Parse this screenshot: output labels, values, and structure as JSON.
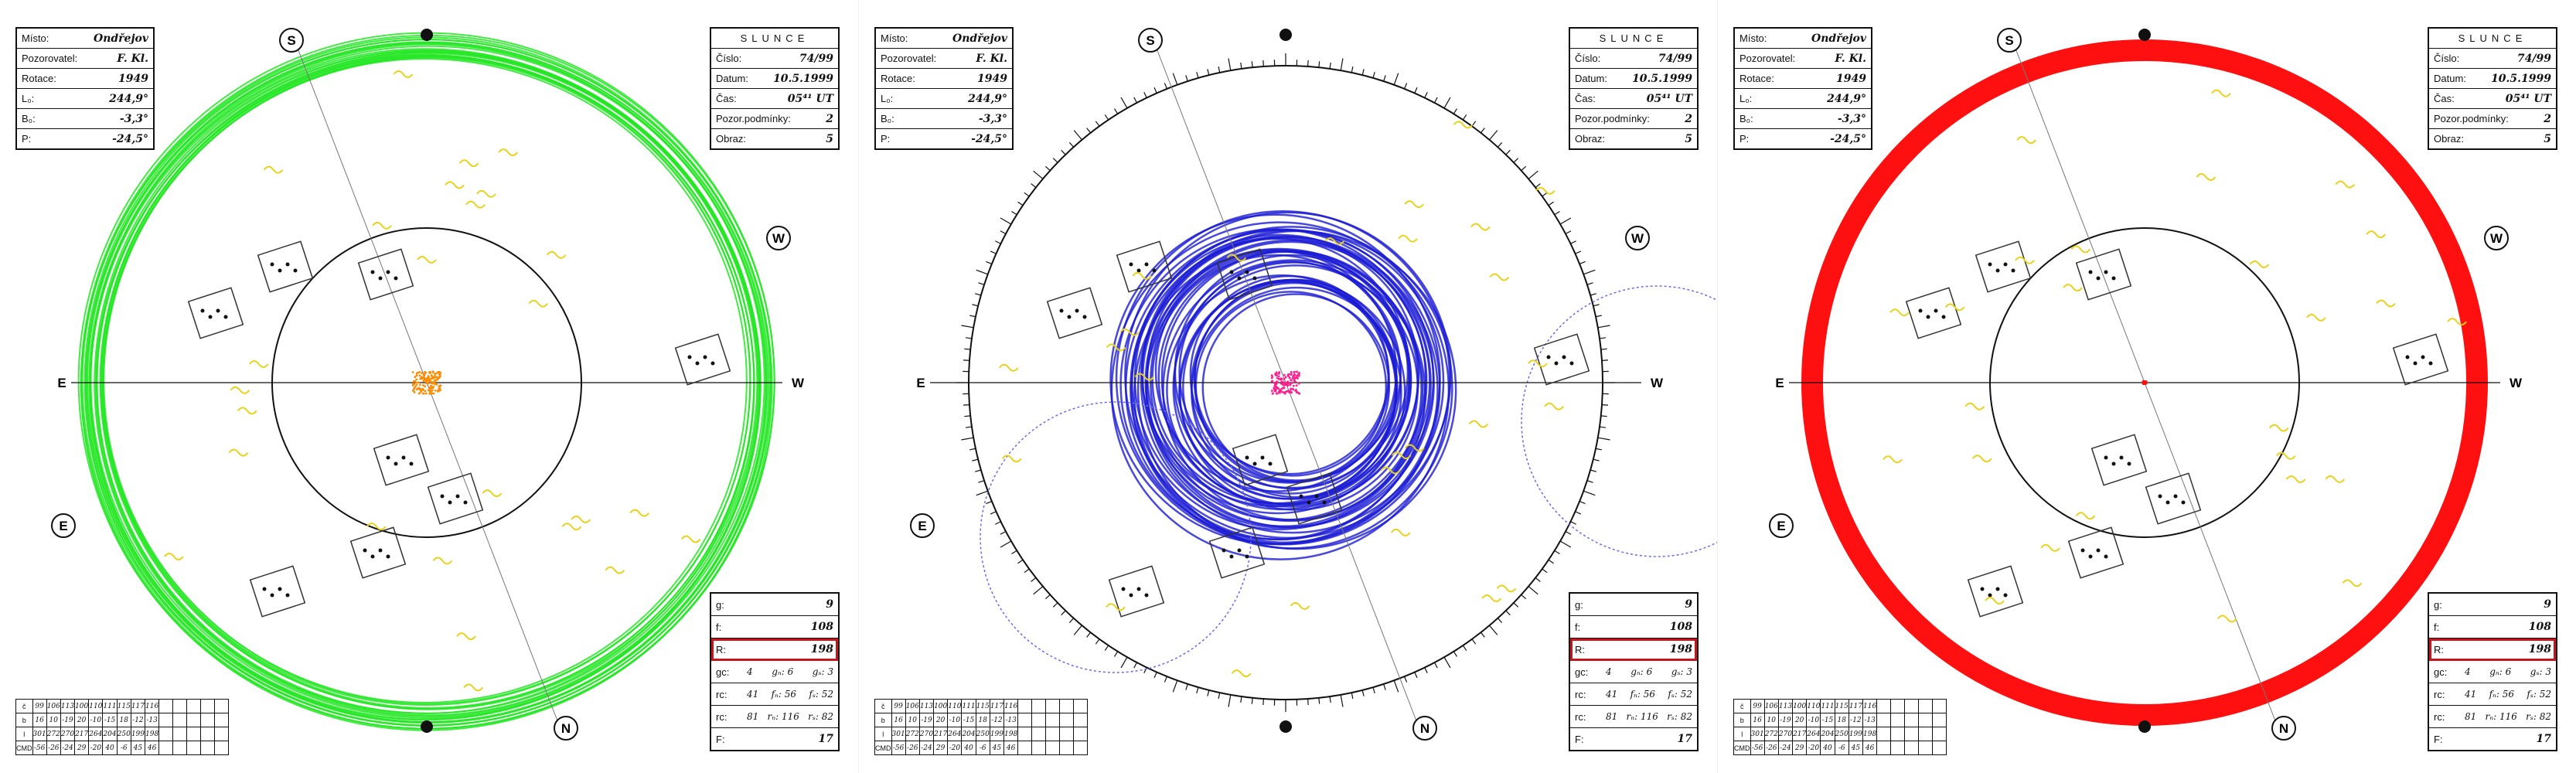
{
  "panels": [
    {
      "id": "panel-1",
      "ring_color": "#22e622",
      "center_color": "#ff8c00",
      "compass": {
        "N": "N",
        "S": "S",
        "E": "E",
        "W": "W"
      },
      "left_box": [
        {
          "label": "Místo:",
          "value": "Ondřejov"
        },
        {
          "label": "Pozorovatel:",
          "value": "F. Kl."
        },
        {
          "label": "Rotace:",
          "value": "1949"
        },
        {
          "label": "L₀:",
          "value": "244,9°"
        },
        {
          "label": "B₀:",
          "value": "-3,3°"
        },
        {
          "label": "P:",
          "value": "-24,5°"
        }
      ],
      "right_box": {
        "title": "SLUNCE",
        "rows": [
          {
            "label": "Číslo:",
            "value": "74/99"
          },
          {
            "label": "Datum:",
            "value": "10.5.1999"
          },
          {
            "label": "Čas:",
            "value": "05⁴¹ UT"
          },
          {
            "label": "Pozor.podmínky:",
            "value": "2"
          },
          {
            "label": "Obraz:",
            "value": "5"
          }
        ]
      }
    },
    {
      "id": "panel-2",
      "ring_color": "#1a1ad4",
      "center_color": "#ff1f8e",
      "compass": {
        "N": "N",
        "S": "S",
        "E": "E",
        "W": "W"
      },
      "left_box": [
        {
          "label": "Místo:",
          "value": "Ondřejov"
        },
        {
          "label": "Pozorovatel:",
          "value": "F. Kl."
        },
        {
          "label": "Rotace:",
          "value": "1949"
        },
        {
          "label": "L₀:",
          "value": "244,9°"
        },
        {
          "label": "B₀:",
          "value": "-3,3°"
        },
        {
          "label": "P:",
          "value": "-24,5°"
        }
      ],
      "right_box": {
        "title": "SLUNCE",
        "rows": [
          {
            "label": "Číslo:",
            "value": "74/99"
          },
          {
            "label": "Datum:",
            "value": "10.5.1999"
          },
          {
            "label": "Čas:",
            "value": "05⁴¹ UT"
          },
          {
            "label": "Pozor.podmínky:",
            "value": "2"
          },
          {
            "label": "Obraz:",
            "value": "5"
          }
        ]
      }
    },
    {
      "id": "panel-3",
      "ring_color": "#ff1010",
      "center_color": "#ff1010",
      "compass": {
        "N": "N",
        "S": "S",
        "E": "E",
        "W": "W"
      },
      "left_box": [
        {
          "label": "Místo:",
          "value": "Ondřejov"
        },
        {
          "label": "Pozorovatel:",
          "value": "F. Kl."
        },
        {
          "label": "Rotace:",
          "value": "1949"
        },
        {
          "label": "L₀:",
          "value": "244,9°"
        },
        {
          "label": "B₀:",
          "value": "-3,3°"
        },
        {
          "label": "P:",
          "value": "-24,5°"
        }
      ],
      "right_box": {
        "title": "SLUNCE",
        "rows": [
          {
            "label": "Číslo:",
            "value": "74/99"
          },
          {
            "label": "Datum:",
            "value": "10.5.1999"
          },
          {
            "label": "Čas:",
            "value": "05⁴¹ UT"
          },
          {
            "label": "Pozor.podmínky:",
            "value": "2"
          },
          {
            "label": "Obraz:",
            "value": "5"
          }
        ]
      }
    }
  ],
  "stats": {
    "g": "9",
    "f": "108",
    "R": "198",
    "gc": {
      "label": "gc:",
      "a": "4",
      "b": "gₙ: 6",
      "c": "gₛ: 3"
    },
    "rc": {
      "label": "rc:",
      "a": "41",
      "b": "fₙ: 56",
      "c": "fₛ: 52"
    },
    "rc2": {
      "label": "rc:",
      "a": "81",
      "b": "rₙ: 116",
      "c": "rₛ: 82"
    },
    "F": "17"
  },
  "ledger": {
    "rows": [
      {
        "head": "č",
        "cells": [
          "99",
          "106",
          "113",
          "100",
          "110",
          "111",
          "115",
          "117",
          "116"
        ]
      },
      {
        "head": "b",
        "cells": [
          "16",
          "10",
          "-19",
          "20",
          "-10",
          "-15",
          "18",
          "-12",
          "-13"
        ]
      },
      {
        "head": "l",
        "cells": [
          "301",
          "272",
          "270",
          "217",
          "264",
          "204",
          "250",
          "199",
          "198"
        ]
      },
      {
        "head": "CMD",
        "cells": [
          "-56",
          "-26",
          "-24",
          "29",
          "-20",
          "40",
          "-6",
          "45",
          "46"
        ]
      }
    ]
  }
}
